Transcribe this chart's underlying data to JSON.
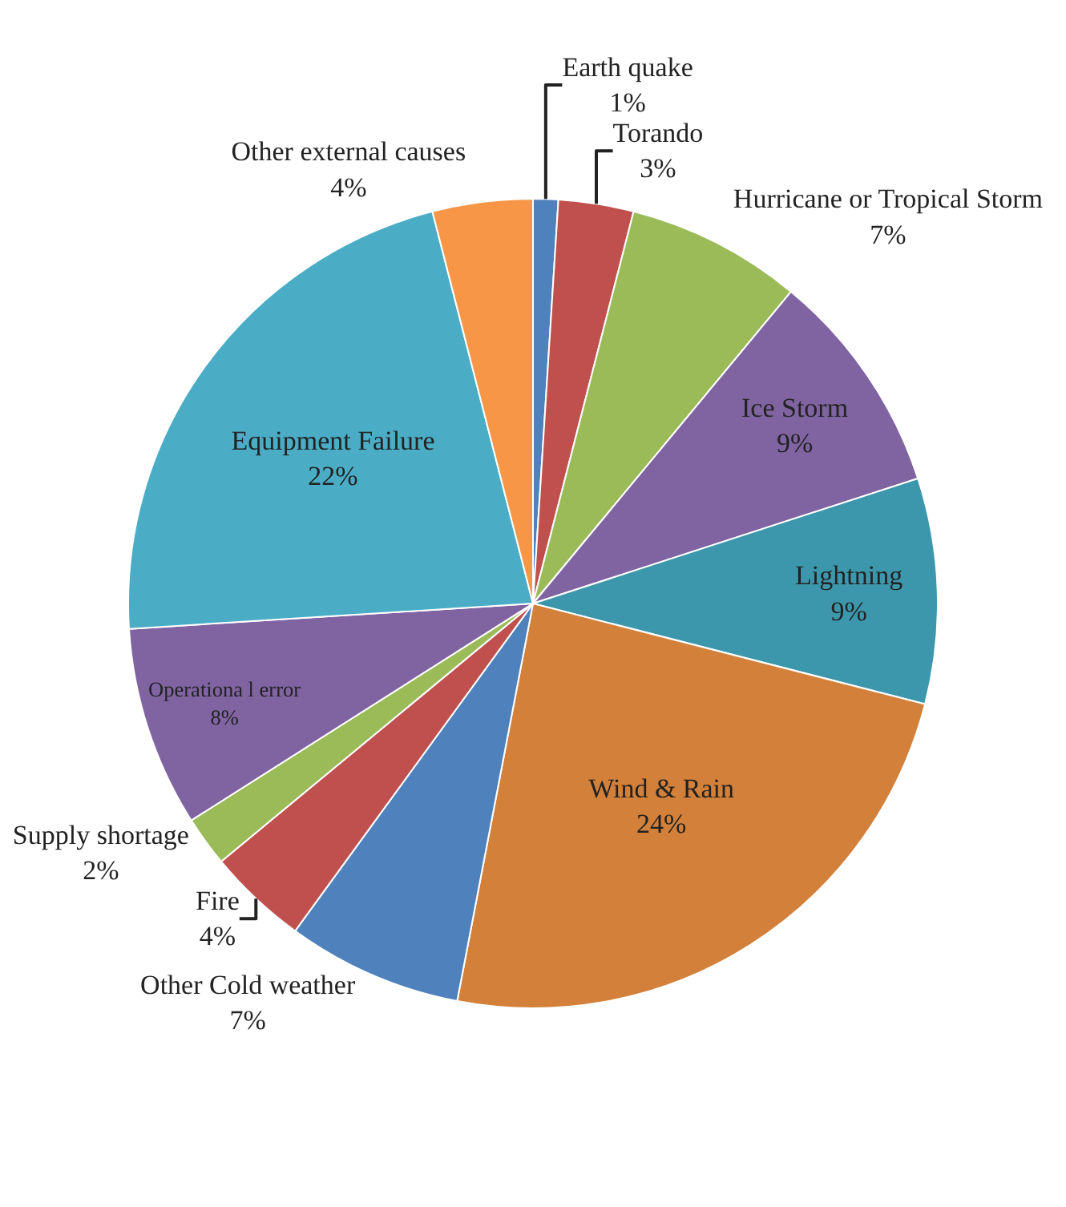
{
  "chart_data": {
    "type": "pie",
    "categories": [
      "Earth quake",
      "Torando",
      "Hurricane or Tropical Storm",
      "Ice Storm",
      "Lightning",
      "Wind & Rain",
      "Other Cold weather",
      "Fire",
      "Supply shortage",
      "Operationa l error",
      "Equipment Failure",
      "Other external causes"
    ],
    "values": [
      1,
      3,
      7,
      9,
      9,
      24,
      7,
      4,
      2,
      8,
      22,
      4
    ],
    "value_labels": [
      "1%",
      "3%",
      "7%",
      "9%",
      "9%",
      "24%",
      "7%",
      "4%",
      "2%",
      "8%",
      "22%",
      "4%"
    ],
    "colors": [
      "#4f81bd",
      "#c0504d",
      "#9bbb59",
      "#8064a2",
      "#3d97ac",
      "#d2803a",
      "#4f81bd",
      "#c0504d",
      "#9bbb59",
      "#8064a2",
      "#4bacc6",
      "#f79646"
    ],
    "legend": false
  }
}
